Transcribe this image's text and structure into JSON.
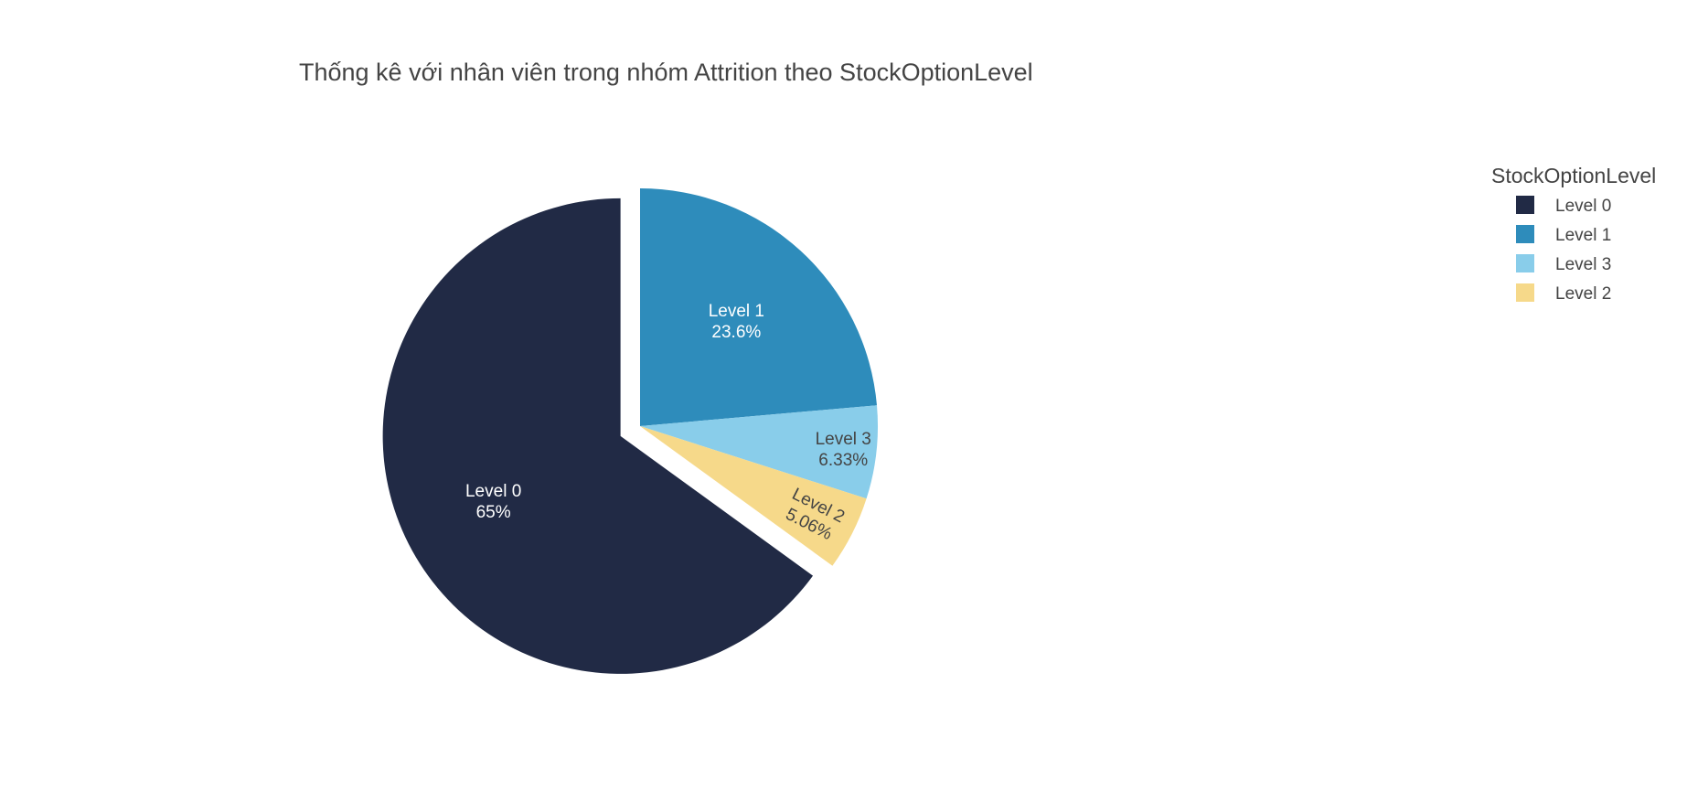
{
  "chart_data": {
    "type": "pie",
    "title": "Thống kê với nhân viên trong nhóm Attrition theo StockOptionLevel",
    "legend_title": "StockOptionLevel",
    "legend_position": "top-right",
    "slices": [
      {
        "label": "Level 0",
        "value": 65.0,
        "percent_text": "65%",
        "color": "#212a45",
        "text_color": "#ffffff",
        "pulled": true
      },
      {
        "label": "Level 1",
        "value": 23.6,
        "percent_text": "23.6%",
        "color": "#2e8cbb",
        "text_color": "#ffffff",
        "pulled": false
      },
      {
        "label": "Level 3",
        "value": 6.33,
        "percent_text": "6.33%",
        "color": "#89cdea",
        "text_color": "#444444",
        "pulled": false
      },
      {
        "label": "Level 2",
        "value": 5.06,
        "percent_text": "5.06%",
        "color": "#f6d98a",
        "text_color": "#444444",
        "pulled": false
      }
    ]
  }
}
